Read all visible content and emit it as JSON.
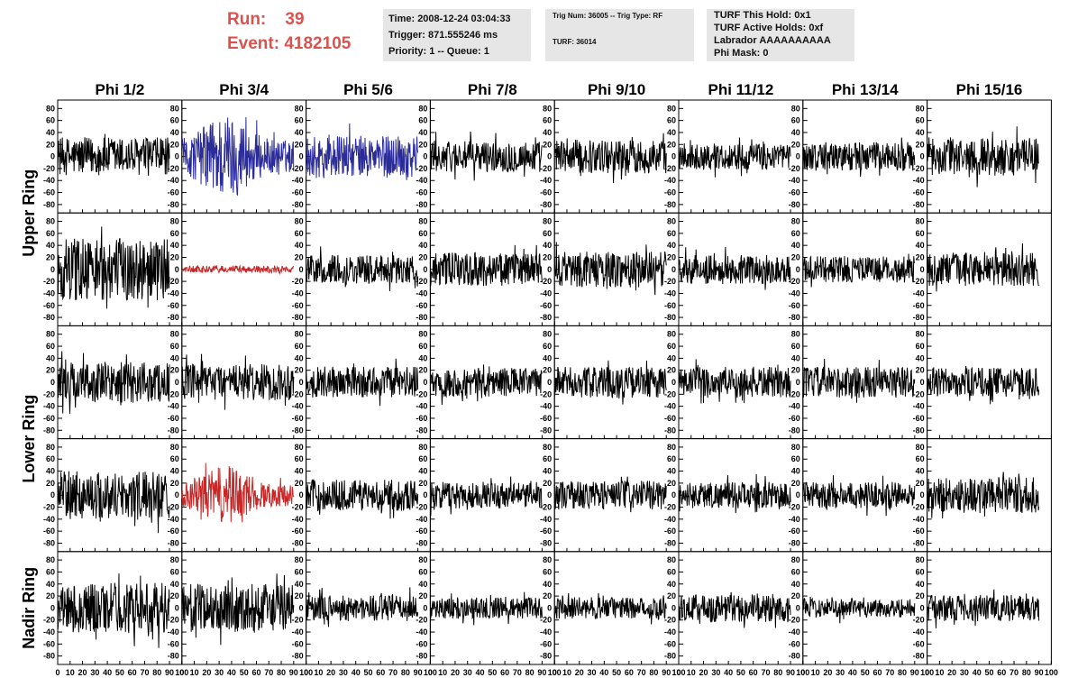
{
  "header": {
    "run_label": "Run:",
    "run_value": "39",
    "event_label": "Event:",
    "event_value": "4182105"
  },
  "info": {
    "time": "Time: 2008-12-24 03:04:33",
    "trigger": "Trigger: 871.555246 ms",
    "priority": "Priority: 1 -- Queue: 1",
    "trig_num": "Trig Num: 36005 -- Trig Type: RF",
    "turf": "TURF: 36014",
    "turf_hold": "TURF This Hold: 0x1",
    "turf_active": "TURF Active Holds: 0xf",
    "labrador": "Labrador AAAAAAAAAA",
    "phi_mask": "Phi Mask: 0"
  },
  "chart_data": {
    "type": "line",
    "columns": [
      "Phi 1/2",
      "Phi 3/4",
      "Phi 5/6",
      "Phi 7/8",
      "Phi 9/10",
      "Phi 11/12",
      "Phi 13/14",
      "Phi 15/16"
    ],
    "rows": [
      "Upper Ring",
      "Upper Ring",
      "Lower Ring",
      "Lower Ring",
      "Nadir Ring"
    ],
    "row_label_rows": [
      0,
      2,
      4
    ],
    "row_labels": [
      "Upper Ring",
      "Lower Ring",
      "Nadir Ring"
    ],
    "ylim": [
      -85,
      85
    ],
    "yticks": [
      -80,
      -60,
      -40,
      -20,
      0,
      20,
      40,
      60,
      80
    ],
    "xlim": [
      0,
      100
    ],
    "xticks": [
      0,
      10,
      20,
      30,
      40,
      50,
      60,
      70,
      80,
      90,
      100
    ],
    "x_range_of_trace": [
      0,
      90
    ],
    "samples_per_trace": 240,
    "colors": {
      "default": "#000000",
      "blue": "#2b2b9a",
      "red": "#c62828"
    },
    "amplitudes": [
      [
        32,
        60,
        35,
        26,
        28,
        22,
        24,
        32
      ],
      [
        52,
        6,
        24,
        28,
        30,
        24,
        22,
        28
      ],
      [
        34,
        30,
        26,
        24,
        26,
        26,
        26,
        24
      ],
      [
        40,
        40,
        26,
        22,
        24,
        22,
        22,
        30
      ],
      [
        42,
        40,
        22,
        18,
        18,
        24,
        16,
        22
      ]
    ],
    "trace_colors": [
      [
        "default",
        "blue",
        "blue",
        "default",
        "default",
        "default",
        "default",
        "default"
      ],
      [
        "default",
        "red",
        "default",
        "default",
        "default",
        "default",
        "default",
        "default"
      ],
      [
        "default",
        "default",
        "default",
        "default",
        "default",
        "default",
        "default",
        "default"
      ],
      [
        "default",
        "red",
        "default",
        "default",
        "default",
        "default",
        "default",
        "default"
      ],
      [
        "default",
        "default",
        "default",
        "default",
        "default",
        "default",
        "default",
        "default"
      ]
    ],
    "envelope_peaked": [
      [
        false,
        true,
        false,
        false,
        false,
        false,
        false,
        false
      ],
      [
        false,
        false,
        false,
        false,
        false,
        false,
        false,
        false
      ],
      [
        false,
        false,
        false,
        false,
        false,
        false,
        false,
        false
      ],
      [
        false,
        true,
        false,
        false,
        false,
        false,
        false,
        false
      ],
      [
        false,
        false,
        false,
        false,
        false,
        false,
        false,
        false
      ]
    ]
  }
}
